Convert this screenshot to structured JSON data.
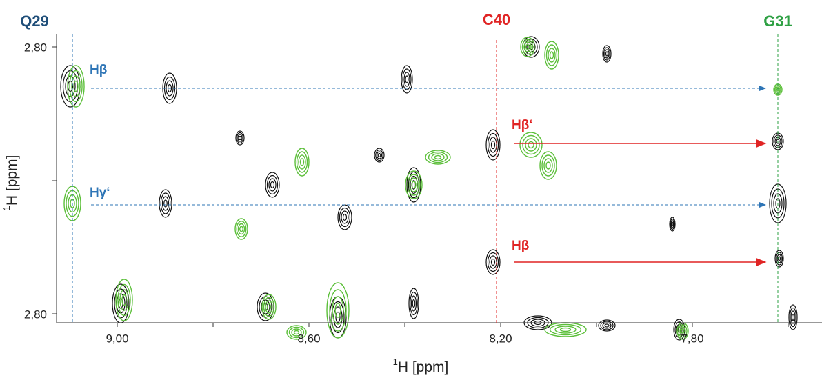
{
  "residues": [
    {
      "label": "Q29",
      "color": "#1f4e79"
    },
    {
      "label": "C40",
      "color": "#e02424"
    },
    {
      "label": "G31",
      "color": "#2ea043"
    }
  ],
  "annotations": [
    {
      "label": "Hβ",
      "color": "#2e75b6"
    },
    {
      "label": "Hγ‘",
      "color": "#2e75b6"
    },
    {
      "label": "Hβ‘",
      "color": "#e02424"
    },
    {
      "label": "Hβ",
      "color": "#e02424"
    }
  ],
  "x_axis": {
    "title_sup": "1",
    "title": "H [ppm]",
    "ticks": [
      "9,00",
      "8,60",
      "8,20",
      "7,80"
    ]
  },
  "y_axis": {
    "title_sup": "1",
    "title": "H [ppm]",
    "ticks": [
      "2,80",
      "2,80"
    ]
  }
}
